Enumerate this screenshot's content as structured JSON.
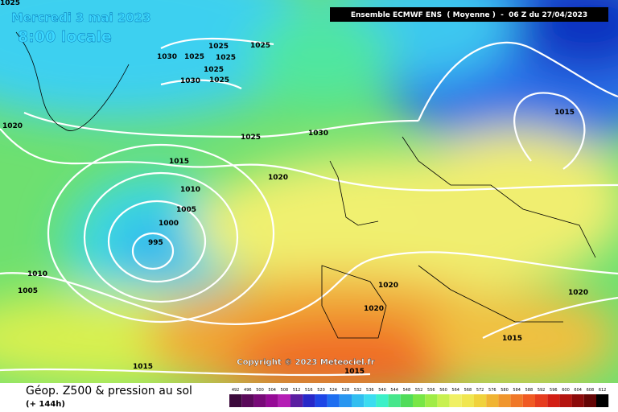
{
  "header": {
    "date": "Mercredi 3 mai 2023",
    "time": "8:00 locale",
    "run": "Ensemble ECMWF ENS  ( Moyenne )  -  06 Z du 27/04/2023"
  },
  "copyright": "Copyright © 2023 Meteociel.fr",
  "footer": {
    "title": "Géop. Z500 & pression au sol",
    "lead": "(+ 144h)"
  },
  "isobar_labels": [
    1025,
    1030,
    1025,
    1025,
    1025,
    1025,
    1025,
    1030,
    1025,
    1020,
    1015,
    1030,
    1025,
    1015,
    1020,
    1010,
    1005,
    1000,
    995,
    1010,
    1005,
    1020,
    1020,
    1020,
    1015,
    1015,
    1015
  ],
  "legend": {
    "levels": [
      492,
      496,
      500,
      504,
      508,
      512,
      516,
      520,
      524,
      528,
      532,
      536,
      540,
      544,
      548,
      552,
      556,
      560,
      564,
      568,
      572,
      576,
      580,
      584,
      588,
      592,
      596,
      600,
      604,
      608,
      612
    ],
    "colors": [
      "#3c0a3c",
      "#5a0a5a",
      "#780a78",
      "#960a96",
      "#b41eb4",
      "#5a1ea0",
      "#2828c8",
      "#1e46e6",
      "#1e6ef0",
      "#2896f0",
      "#32bef0",
      "#3cdcf0",
      "#3cf0c8",
      "#46e68c",
      "#50dc5a",
      "#78e646",
      "#a0ec46",
      "#c8f050",
      "#f0f064",
      "#f0e650",
      "#f0d23c",
      "#f0b432",
      "#f0962d",
      "#f07828",
      "#f05a23",
      "#e63c1e",
      "#d21e14",
      "#b4140f",
      "#8c0a0a",
      "#640505",
      "#000000"
    ]
  }
}
